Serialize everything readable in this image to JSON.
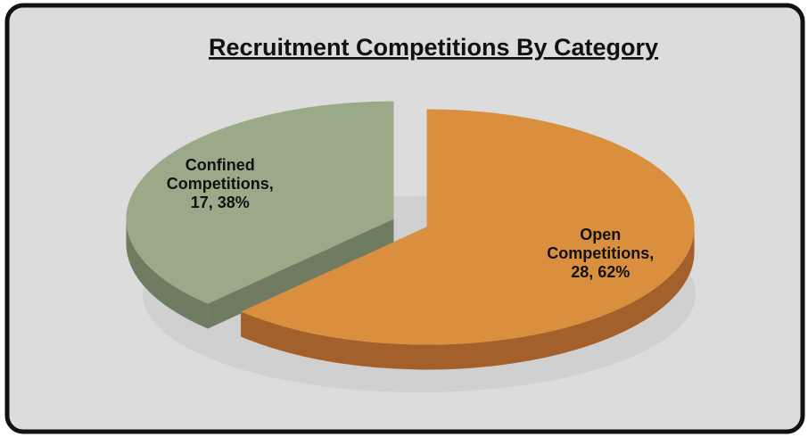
{
  "chart_data": {
    "type": "pie",
    "title": "Recruitment Competitions By Category",
    "values": [
      17,
      28
    ],
    "value_labels": [
      [
        "Confined",
        "Competitions,",
        "17, 38%"
      ],
      [
        "Open",
        "Competitions,",
        "28, 62%"
      ]
    ],
    "colors": [
      "#9aaa88",
      "#d98f3e"
    ],
    "side_colors": [
      "#6f7c62",
      "#a4602a"
    ]
  }
}
